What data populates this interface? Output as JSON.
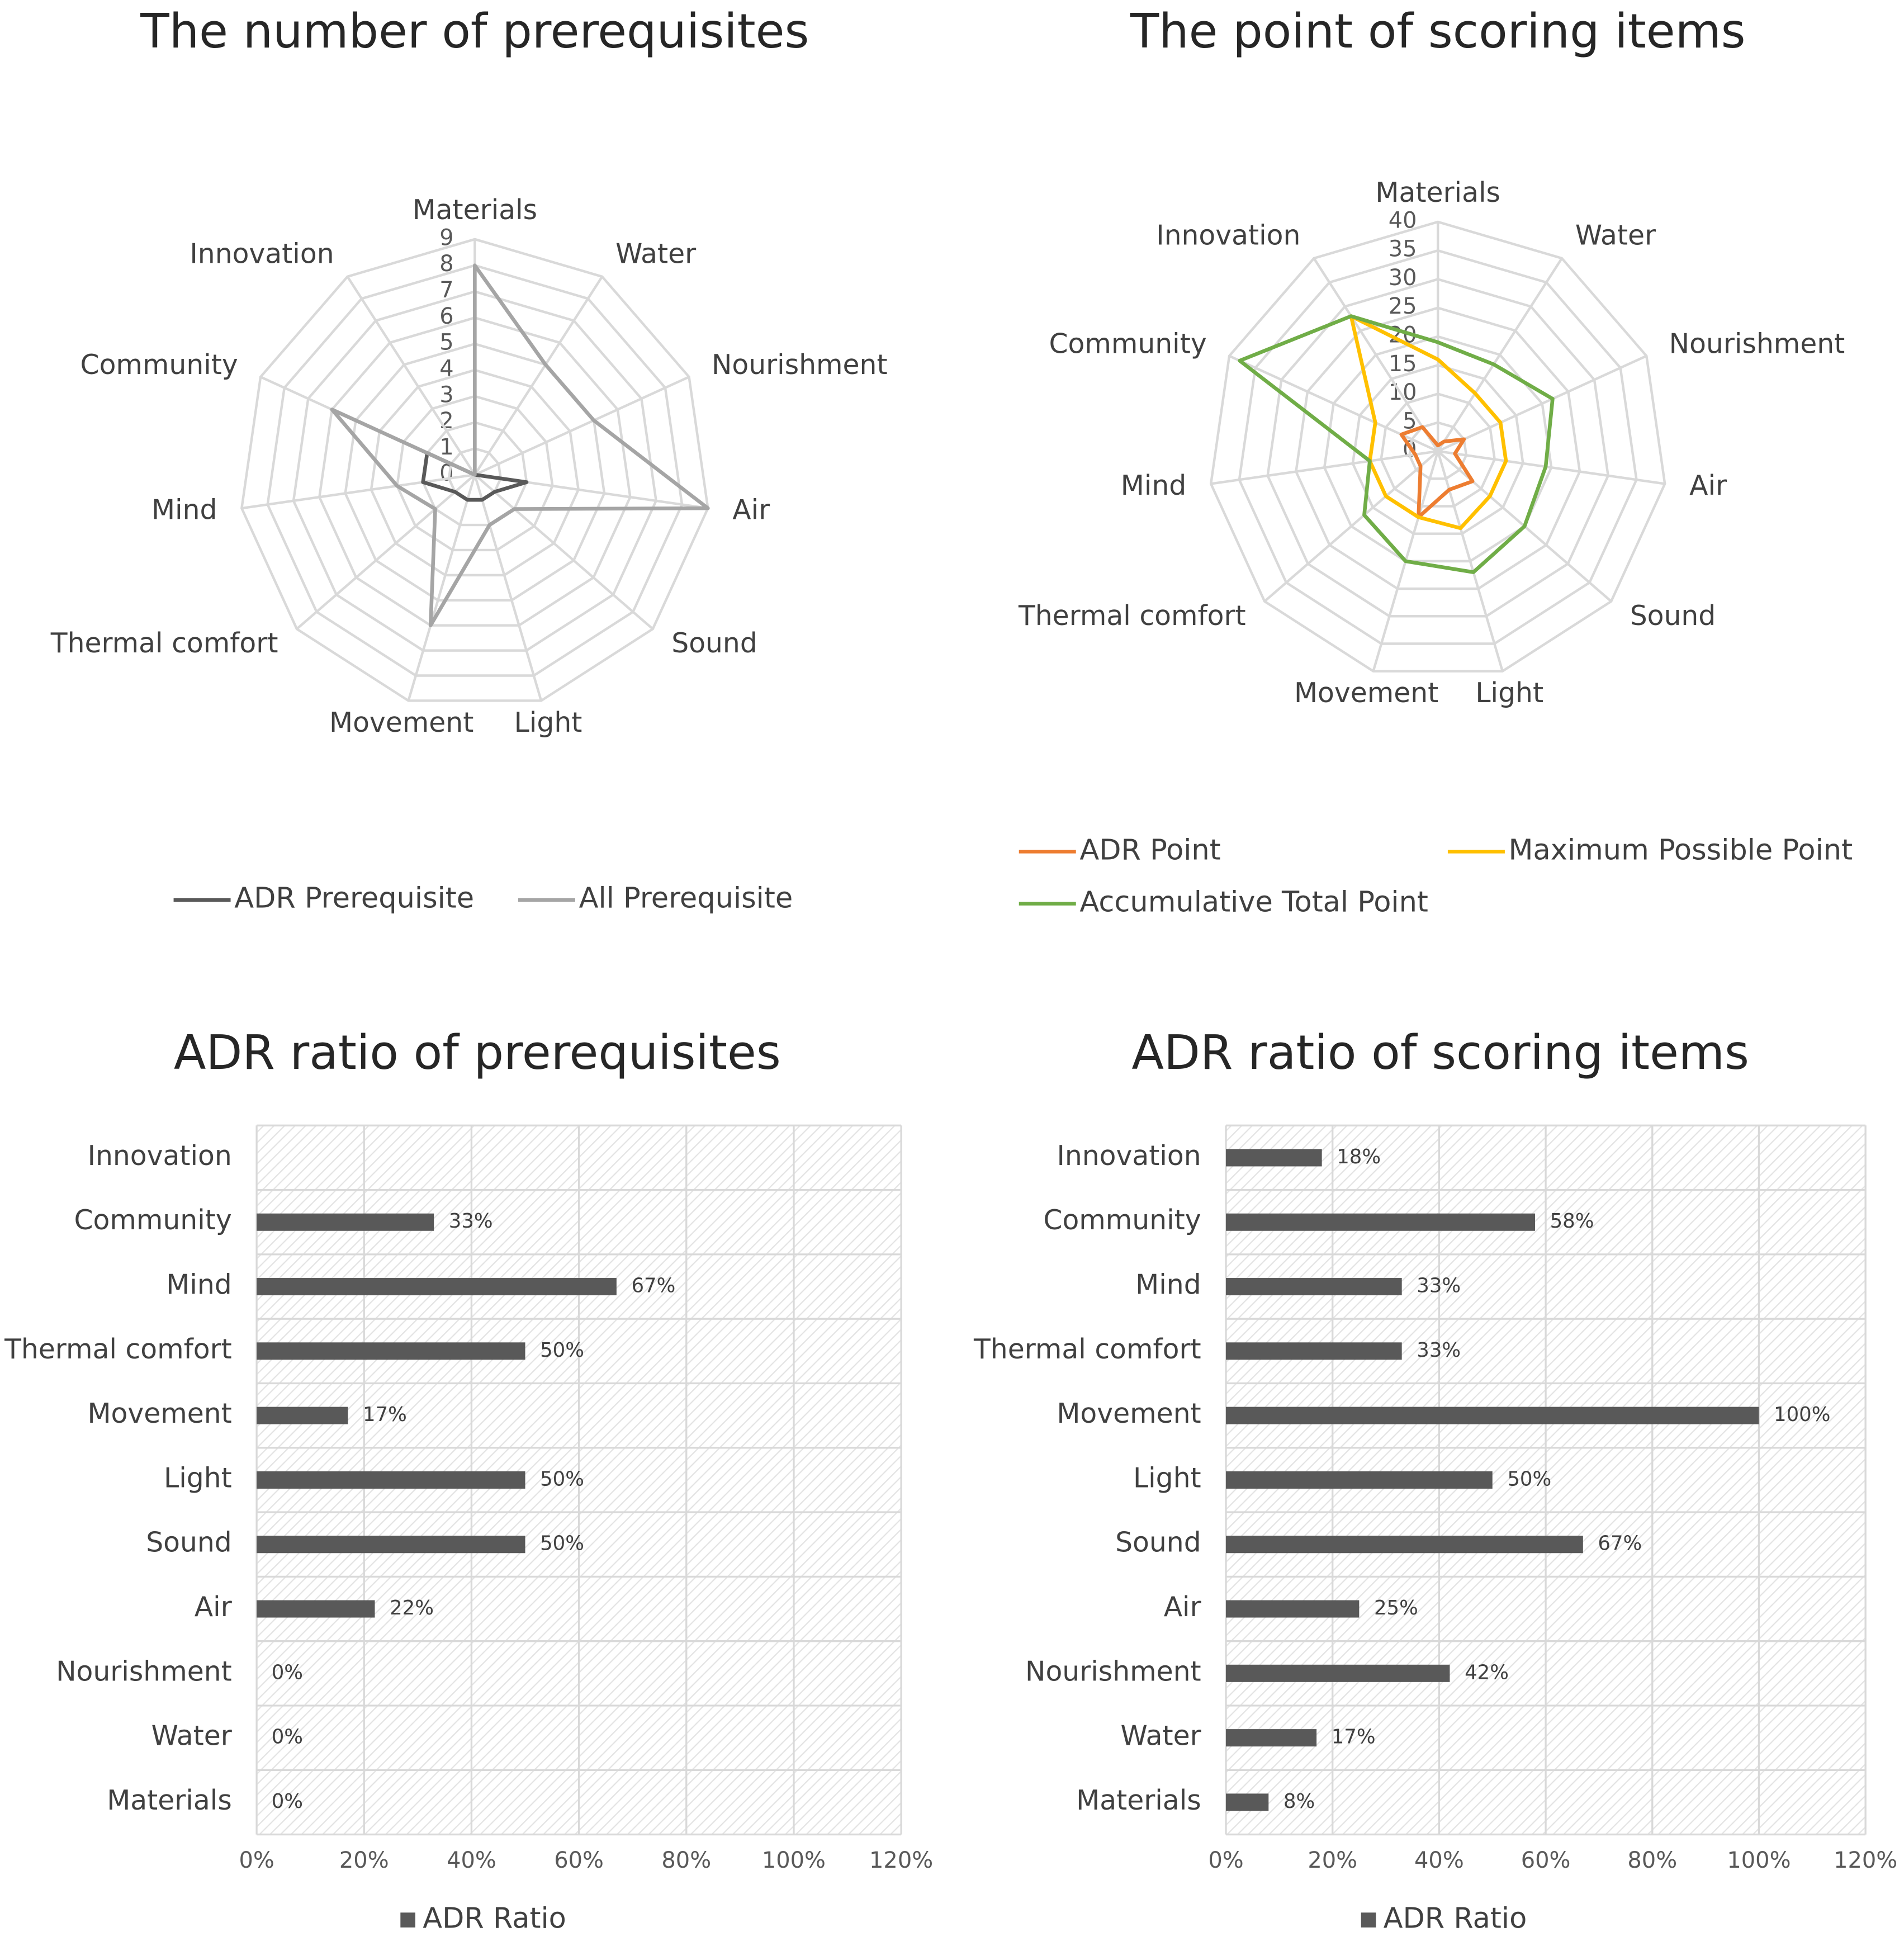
{
  "chart_data": [
    {
      "type": "radar",
      "title": "The number of prerequisites",
      "categories": [
        "Materials",
        "Water",
        "Nourishment",
        "Air",
        "Sound",
        "Light",
        "Movement",
        "Thermal comfort",
        "Mind",
        "Community",
        "Innovation"
      ],
      "series": [
        {
          "name": "ADR Prerequisite",
          "color": "#595959",
          "values": [
            0,
            0,
            0,
            2,
            1,
            1,
            1,
            1,
            2,
            2,
            0
          ]
        },
        {
          "name": "All Prerequisite",
          "color": "#a5a5a5",
          "values": [
            8,
            5,
            5,
            9,
            2,
            2,
            6,
            2,
            3,
            6,
            0
          ]
        }
      ],
      "ylim": [
        0,
        9
      ],
      "yticks": [
        0,
        1,
        2,
        3,
        4,
        5,
        6,
        7,
        8,
        9
      ],
      "legend": "bottom"
    },
    {
      "type": "radar",
      "title": "The point of scoring items",
      "categories": [
        "Materials",
        "Water",
        "Nourishment",
        "Air",
        "Sound",
        "Light",
        "Movement",
        "Thermal comfort",
        "Mind",
        "Community",
        "Innovation"
      ],
      "series": [
        {
          "name": "ADR Point",
          "color": "#ed7d31",
          "values": [
            1,
            2,
            5,
            3,
            8,
            7,
            12,
            4,
            4,
            7,
            5
          ]
        },
        {
          "name": "Maximum Possible Point",
          "color": "#ffc000",
          "values": [
            16,
            12,
            12,
            12,
            12,
            14,
            12,
            12,
            12,
            12,
            28
          ]
        },
        {
          "name": "Accumulative Total Point",
          "color": "#70ad47",
          "values": [
            19,
            18,
            22,
            19,
            20,
            22,
            20,
            17,
            12,
            38,
            28
          ]
        }
      ],
      "ylim": [
        0,
        40
      ],
      "yticks": [
        0,
        5,
        10,
        15,
        20,
        25,
        30,
        35,
        40
      ],
      "legend": "bottom"
    },
    {
      "type": "hbar",
      "title": "ADR ratio of prerequisites",
      "categories": [
        "Materials",
        "Water",
        "Nourishment",
        "Air",
        "Sound",
        "Light",
        "Movement",
        "Thermal comfort",
        "Mind",
        "Community",
        "Innovation"
      ],
      "series": [
        {
          "name": "ADR Ratio",
          "color": "#595959",
          "values": [
            0,
            0,
            0,
            22,
            50,
            50,
            17,
            50,
            67,
            33,
            null
          ],
          "value_labels": [
            "0%",
            "0%",
            "0%",
            "22%",
            "50%",
            "50%",
            "17%",
            "50%",
            "67%",
            "33%",
            null
          ]
        }
      ],
      "xlim": [
        0,
        120
      ],
      "xticks": [
        {
          "value": 0,
          "label": "0%"
        },
        {
          "value": 20,
          "label": "20%"
        },
        {
          "value": 40,
          "label": "40%"
        },
        {
          "value": 60,
          "label": "60%"
        },
        {
          "value": 80,
          "label": "80%"
        },
        {
          "value": 100,
          "label": "100%"
        },
        {
          "value": 120,
          "label": "120%"
        }
      ],
      "grid": true,
      "legend": "bottom"
    },
    {
      "type": "hbar",
      "title": "ADR ratio of scoring items",
      "categories": [
        "Materials",
        "Water",
        "Nourishment",
        "Air",
        "Sound",
        "Light",
        "Movement",
        "Thermal comfort",
        "Mind",
        "Community",
        "Innovation"
      ],
      "series": [
        {
          "name": "ADR Ratio",
          "color": "#595959",
          "values": [
            8,
            17,
            42,
            25,
            67,
            50,
            100,
            33,
            33,
            58,
            18
          ],
          "value_labels": [
            "8%",
            "17%",
            "42%",
            "25%",
            "67%",
            "50%",
            "100%",
            "33%",
            "33%",
            "58%",
            "18%"
          ]
        }
      ],
      "xlim": [
        0,
        120
      ],
      "xticks": [
        {
          "value": 0,
          "label": "0%"
        },
        {
          "value": 20,
          "label": "20%"
        },
        {
          "value": 40,
          "label": "40%"
        },
        {
          "value": 60,
          "label": "60%"
        },
        {
          "value": 80,
          "label": "80%"
        },
        {
          "value": 100,
          "label": "100%"
        },
        {
          "value": 120,
          "label": "120%"
        }
      ],
      "grid": true,
      "legend": "bottom"
    }
  ]
}
